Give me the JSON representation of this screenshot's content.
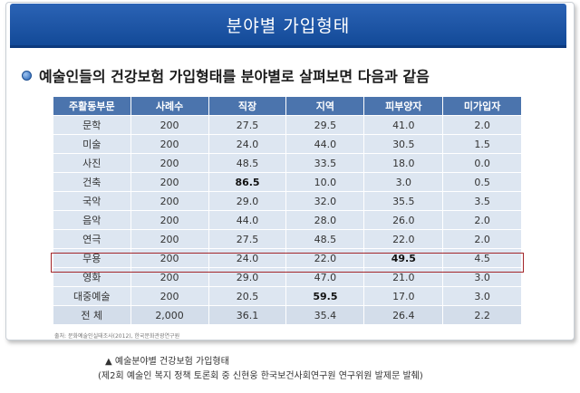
{
  "banner": {
    "title": "분야별 가입형태"
  },
  "heading": {
    "text": "예술인들의 건강보험 가입형태를 분야별로 살펴보면 다음과 같음"
  },
  "table": {
    "headers": [
      "주활동부문",
      "사례수",
      "직장",
      "지역",
      "피부양자",
      "미가입자"
    ],
    "rows": [
      [
        "문학",
        "200",
        "27.5",
        "29.5",
        "41.0",
        "2.0"
      ],
      [
        "미술",
        "200",
        "24.0",
        "44.0",
        "30.5",
        "1.5"
      ],
      [
        "사진",
        "200",
        "48.5",
        "33.5",
        "18.0",
        "0.0"
      ],
      [
        "건축",
        "200",
        "86.5",
        "10.0",
        "3.0",
        "0.5"
      ],
      [
        "국악",
        "200",
        "29.0",
        "32.0",
        "35.5",
        "3.5"
      ],
      [
        "음악",
        "200",
        "44.0",
        "28.0",
        "26.0",
        "2.0"
      ],
      [
        "연극",
        "200",
        "27.5",
        "48.5",
        "22.0",
        "2.0"
      ],
      [
        "무용",
        "200",
        "24.0",
        "22.0",
        "49.5",
        "4.5"
      ],
      [
        "영화",
        "200",
        "29.0",
        "47.0",
        "21.0",
        "3.0"
      ],
      [
        "대중예술",
        "200",
        "20.5",
        "59.5",
        "17.0",
        "3.0"
      ],
      [
        "전 체",
        "2,000",
        "36.1",
        "35.4",
        "26.4",
        "2.2"
      ]
    ],
    "bold_cells": [
      [
        3,
        2
      ],
      [
        7,
        4
      ],
      [
        9,
        3
      ]
    ],
    "highlight_row": 7
  },
  "source": "출처: 문화예술인실태조사(2012), 한국문화관광연구원",
  "caption": {
    "line1": "▲ 예술분야별 건강보험 가입형태",
    "line2": "(제2회 예술인 복지 정책 토론회 중 신현웅 한국보건사회연구원 연구위원 발제문 발췌)"
  }
}
